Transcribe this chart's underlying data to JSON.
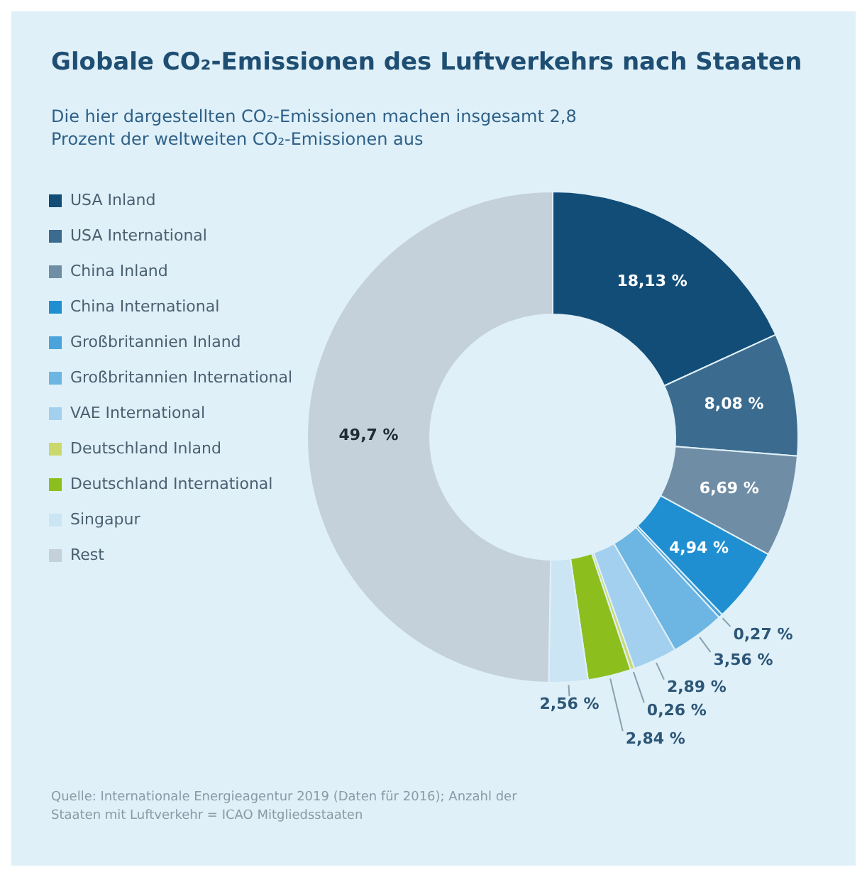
{
  "chart_data": {
    "type": "donut",
    "title": "Globale CO₂-Emissionen des Luftverkehrs nach Staaten",
    "subtitle": "Die hier dargestellten CO₂-Emissionen machen insgesamt 2,8 Prozent der weltweiten CO₂-Emissionen aus",
    "categories": [
      "USA Inland",
      "USA International",
      "China Inland",
      "China International",
      "Großbritannien Inland",
      "Großbritannien International",
      "VAE International",
      "Deutschland Inland",
      "Deutschland International",
      "Singapur",
      "Rest"
    ],
    "values": [
      18.13,
      8.08,
      6.69,
      4.94,
      0.27,
      3.56,
      2.89,
      0.26,
      2.84,
      2.56,
      49.7
    ],
    "value_labels": [
      "18,13 %",
      "8,08 %",
      "6,69 %",
      "4,94 %",
      "0,27 %",
      "3,56 %",
      "2,89 %",
      "0,26 %",
      "2,84 %",
      "2,56 %",
      "49,7 %"
    ],
    "colors": [
      "#124d78",
      "#3b6b8f",
      "#6f8ea6",
      "#1f8fd2",
      "#4aa3db",
      "#6db5e2",
      "#a3d0ee",
      "#cbd86c",
      "#8cbf1e",
      "#cce5f5",
      "#c4d1db"
    ],
    "legend": "left",
    "annotations": [
      "Quelle: Internationale Energieagentur 2019 (Daten für 2016); Anzahl der Staaten mit Luftverkehr = ICAO Mitgliedsstaaten"
    ]
  }
}
